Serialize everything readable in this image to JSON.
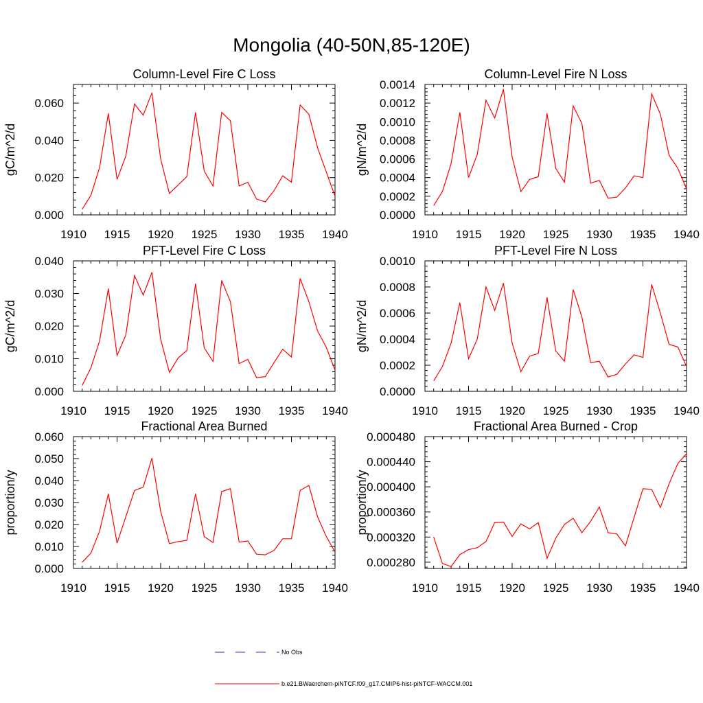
{
  "title": "Mongolia (40-50N,85-120E)",
  "legend": [
    {
      "label": "No Obs",
      "color": "#3333cc",
      "style": "dashed"
    },
    {
      "label": "b.e21.BWaerchem-piNTCF.f09_g17.CMIP6-hist-piNTCF-WACCM.001",
      "color": "#ff0000",
      "style": "solid"
    }
  ],
  "chart_data": [
    {
      "type": "line",
      "title": "Column-Level Fire C Loss",
      "ylabel": "gC/m^2/d",
      "xlim": [
        1910,
        1940
      ],
      "xticks": [
        "1910",
        "1915",
        "1920",
        "1925",
        "1930",
        "1935",
        "1940"
      ],
      "ylim": [
        0,
        0.07
      ],
      "yticks": [
        "0.000",
        "0.020",
        "0.040",
        "0.060"
      ],
      "series": [
        {
          "color": "#ff0000",
          "x": [
            1911,
            1912,
            1913,
            1914,
            1915,
            1916,
            1917,
            1918,
            1919,
            1920,
            1921,
            1922,
            1923,
            1924,
            1925,
            1926,
            1927,
            1928,
            1929,
            1930,
            1931,
            1932,
            1933,
            1934,
            1935,
            1936,
            1937,
            1938,
            1939,
            1940
          ],
          "values": [
            0.003,
            0.0105,
            0.0255,
            0.0545,
            0.019,
            0.0315,
            0.0595,
            0.0535,
            0.0655,
            0.03,
            0.0115,
            0.016,
            0.0205,
            0.055,
            0.0235,
            0.0155,
            0.055,
            0.0505,
            0.0155,
            0.0175,
            0.0085,
            0.007,
            0.013,
            0.021,
            0.0175,
            0.059,
            0.054,
            0.036,
            0.023,
            0.01
          ]
        }
      ]
    },
    {
      "type": "line",
      "title": "Column-Level Fire N Loss",
      "ylabel": "gN/m^2/d",
      "xlim": [
        1910,
        1940
      ],
      "xticks": [
        "1910",
        "1915",
        "1920",
        "1925",
        "1930",
        "1935",
        "1940"
      ],
      "ylim": [
        0,
        0.0014
      ],
      "yticks": [
        "0.0000",
        "0.0002",
        "0.0004",
        "0.0006",
        "0.0008",
        "0.0010",
        "0.0012",
        "0.0014"
      ],
      "series": [
        {
          "color": "#ff0000",
          "x": [
            1911,
            1912,
            1913,
            1914,
            1915,
            1916,
            1917,
            1918,
            1919,
            1920,
            1921,
            1922,
            1923,
            1924,
            1925,
            1926,
            1927,
            1928,
            1929,
            1930,
            1931,
            1932,
            1933,
            1934,
            1935,
            1936,
            1937,
            1938,
            1939,
            1940
          ],
          "values": [
            0.0001,
            0.00025,
            0.00055,
            0.0011,
            0.0004,
            0.00065,
            0.00123,
            0.00104,
            0.00135,
            0.00062,
            0.00025,
            0.00038,
            0.00041,
            0.00109,
            0.0005,
            0.00035,
            0.00117,
            0.00098,
            0.00034,
            0.00037,
            0.00018,
            0.00019,
            0.00029,
            0.00042,
            0.0004,
            0.0013,
            0.00108,
            0.00064,
            0.0005,
            0.00028
          ]
        }
      ]
    },
    {
      "type": "line",
      "title": "PFT-Level Fire C Loss",
      "ylabel": "gC/m^2/d",
      "xlim": [
        1910,
        1940
      ],
      "xticks": [
        "1910",
        "1915",
        "1920",
        "1925",
        "1930",
        "1935",
        "1940"
      ],
      "ylim": [
        0,
        0.04
      ],
      "yticks": [
        "0.000",
        "0.010",
        "0.020",
        "0.030",
        "0.040"
      ],
      "series": [
        {
          "color": "#ff0000",
          "x": [
            1911,
            1912,
            1913,
            1914,
            1915,
            1916,
            1917,
            1918,
            1919,
            1920,
            1921,
            1922,
            1923,
            1924,
            1925,
            1926,
            1927,
            1928,
            1929,
            1930,
            1931,
            1932,
            1933,
            1934,
            1935,
            1936,
            1937,
            1938,
            1939,
            1940
          ],
          "values": [
            0.0018,
            0.0072,
            0.0155,
            0.0315,
            0.011,
            0.0172,
            0.0355,
            0.0295,
            0.0365,
            0.016,
            0.0058,
            0.0102,
            0.0125,
            0.033,
            0.0133,
            0.0092,
            0.034,
            0.0275,
            0.0085,
            0.0098,
            0.0042,
            0.0045,
            0.0088,
            0.0129,
            0.0105,
            0.0346,
            0.0275,
            0.0185,
            0.0135,
            0.0065
          ]
        }
      ]
    },
    {
      "type": "line",
      "title": "PFT-Level Fire N Loss",
      "ylabel": "gN/m^2/d",
      "xlim": [
        1910,
        1940
      ],
      "xticks": [
        "1910",
        "1915",
        "1920",
        "1925",
        "1930",
        "1935",
        "1940"
      ],
      "ylim": [
        0,
        0.001
      ],
      "yticks": [
        "0.0000",
        "0.0002",
        "0.0004",
        "0.0006",
        "0.0008",
        "0.0010"
      ],
      "series": [
        {
          "color": "#ff0000",
          "x": [
            1911,
            1912,
            1913,
            1914,
            1915,
            1916,
            1917,
            1918,
            1919,
            1920,
            1921,
            1922,
            1923,
            1924,
            1925,
            1926,
            1927,
            1928,
            1929,
            1930,
            1931,
            1932,
            1933,
            1934,
            1935,
            1936,
            1937,
            1938,
            1939,
            1940
          ],
          "values": [
            8e-05,
            0.00019,
            0.00037,
            0.00068,
            0.00025,
            0.0004,
            0.0008,
            0.00062,
            0.00083,
            0.00037,
            0.00015,
            0.00027,
            0.00029,
            0.00072,
            0.00031,
            0.00023,
            0.00078,
            0.00057,
            0.00022,
            0.00023,
            0.00011,
            0.00013,
            0.00021,
            0.00028,
            0.00026,
            0.00082,
            0.0006,
            0.00036,
            0.00034,
            0.00019
          ]
        }
      ]
    },
    {
      "type": "line",
      "title": "Fractional Area Burned",
      "ylabel": "proportion/y",
      "xlim": [
        1910,
        1940
      ],
      "xticks": [
        "1910",
        "1915",
        "1920",
        "1925",
        "1930",
        "1935",
        "1940"
      ],
      "ylim": [
        0,
        0.06
      ],
      "yticks": [
        "0.000",
        "0.010",
        "0.020",
        "0.030",
        "0.040",
        "0.050",
        "0.060"
      ],
      "series": [
        {
          "color": "#ff0000",
          "x": [
            1911,
            1912,
            1913,
            1914,
            1915,
            1916,
            1917,
            1918,
            1919,
            1920,
            1921,
            1922,
            1923,
            1924,
            1925,
            1926,
            1927,
            1928,
            1929,
            1930,
            1931,
            1932,
            1933,
            1934,
            1935,
            1936,
            1937,
            1938,
            1939,
            1940
          ],
          "values": [
            0.0028,
            0.007,
            0.017,
            0.034,
            0.0115,
            0.0235,
            0.0355,
            0.037,
            0.0502,
            0.026,
            0.0113,
            0.0122,
            0.0128,
            0.034,
            0.0145,
            0.0118,
            0.035,
            0.0363,
            0.012,
            0.0125,
            0.0065,
            0.0062,
            0.0082,
            0.0135,
            0.0135,
            0.0355,
            0.0378,
            0.0235,
            0.0145,
            0.0075
          ]
        }
      ]
    },
    {
      "type": "line",
      "title": "Fractional Area Burned - Crop",
      "ylabel": "proportion/y",
      "xlim": [
        1910,
        1940
      ],
      "xticks": [
        "1910",
        "1915",
        "1920",
        "1925",
        "1930",
        "1935",
        "1940"
      ],
      "ylim": [
        0.00027,
        0.00048
      ],
      "yticks": [
        "0.000280",
        "0.000320",
        "0.000360",
        "0.000400",
        "0.000440",
        "0.000480"
      ],
      "series": [
        {
          "color": "#ff0000",
          "x": [
            1911,
            1912,
            1913,
            1914,
            1915,
            1916,
            1917,
            1918,
            1919,
            1920,
            1921,
            1922,
            1923,
            1924,
            1925,
            1926,
            1927,
            1928,
            1929,
            1930,
            1931,
            1932,
            1933,
            1934,
            1935,
            1936,
            1937,
            1938,
            1939,
            1940
          ],
          "values": [
            0.00032,
            0.000278,
            0.000273,
            0.000292,
            0.0003,
            0.000303,
            0.000313,
            0.000343,
            0.000344,
            0.000321,
            0.000341,
            0.000333,
            0.000343,
            0.000286,
            0.000318,
            0.00034,
            0.00035,
            0.000327,
            0.000345,
            0.000368,
            0.000327,
            0.000325,
            0.000306,
            0.000352,
            0.000397,
            0.000396,
            0.000367,
            0.000405,
            0.000437,
            0.000453
          ]
        }
      ]
    }
  ]
}
